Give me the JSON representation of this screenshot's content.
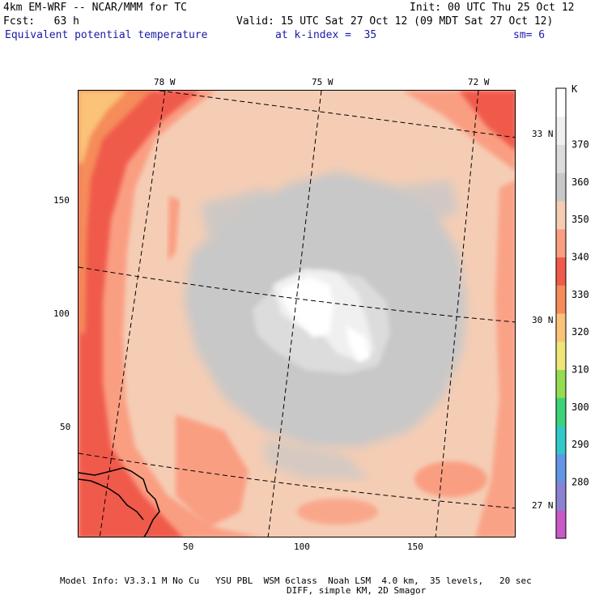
{
  "header": {
    "model": "4km EM-WRF -- NCAR/MMM for TC",
    "init": "Init: 00 UTC Thu 25 Oct 12",
    "fcst": "Fcst:   63 h",
    "valid": "Valid: 15 UTC Sat 27 Oct 12 (09 MDT Sat 27 Oct 12)",
    "field": "Equivalent potential temperature",
    "level": "at k-index =  35",
    "smooth": "sm= 6"
  },
  "map": {
    "x_ticks": [
      "50",
      "100",
      "150"
    ],
    "y_ticks": [
      "50",
      "100",
      "150"
    ],
    "lon_labels": [
      "78 W",
      "75 W",
      "72 W"
    ],
    "lat_labels": [
      "33 N",
      "30 N",
      "27 N"
    ]
  },
  "colorbar": {
    "unit": "K",
    "labels": [
      "370",
      "360",
      "350",
      "340",
      "330",
      "320",
      "310",
      "300",
      "290",
      "280"
    ],
    "colors": [
      "#c85ac8",
      "#8c82d2",
      "#6496e6",
      "#32c8c8",
      "#3cd27a",
      "#96dc50",
      "#f0e678",
      "#fac378",
      "#f58c5a",
      "#f05a4b",
      "#fa9e82",
      "#f5cdb4",
      "#c8c8c8",
      "#dcdcdc",
      "#f0f0f0",
      "#ffffff"
    ]
  },
  "footer": {
    "line1": "Model Info: V3.3.1 M No Cu   YSU PBL  WSM 6class  Noah LSM  4.0 km,  35 levels,   20 sec",
    "line2": "DIFF, simple KM, 2D Smagor"
  }
}
